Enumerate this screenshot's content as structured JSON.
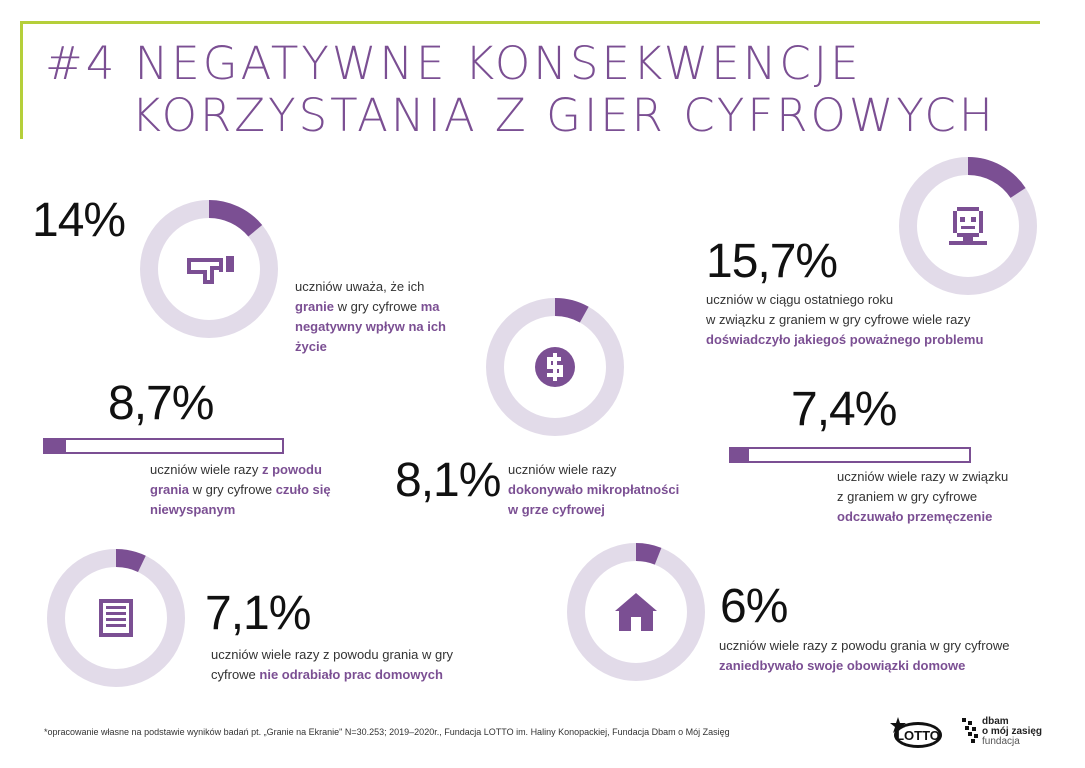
{
  "title": {
    "line1": "#4 NEGATYWNE KONSEKWENCJE",
    "line2": "     KORZYSTANIA Z GIER CYFROWYCH"
  },
  "stats": [
    {
      "id": "negative-impact",
      "value": "14%",
      "fraction": 0.14,
      "icon": "thumbs-down-icon",
      "text": [
        "uczniów uważa, że ich ",
        "granie",
        " w gry cyfrowe ",
        "ma negatywny wpływ",
        " ",
        "na ich życie"
      ]
    },
    {
      "id": "serious-problem",
      "value": "15,7%",
      "fraction": 0.157,
      "icon": "sad-face-icon",
      "text": [
        "uczniów w ciągu ostatniego roku ",
        "w związku z graniem w gry cyfrowe wiele razy ",
        "doświadczyło jakiegoś poważnego problemu"
      ]
    },
    {
      "id": "sleepy",
      "value": "8,7%",
      "fraction": 0.087,
      "text": [
        "uczniów wiele razy ",
        "z powodu",
        " ",
        "grania",
        " w gry cyfrowe ",
        "czuło się",
        " ",
        "niewyspanym"
      ]
    },
    {
      "id": "microtransactions",
      "value": "8,1%",
      "fraction": 0.081,
      "icon": "coin-icon",
      "text": [
        "uczniów wiele razy ",
        "dokonywało mikropłatności",
        " ",
        "w grze cyfrowej"
      ]
    },
    {
      "id": "tired",
      "value": "7,4%",
      "fraction": 0.074,
      "text": [
        "uczniów wiele razy w związku ",
        "z graniem w gry cyfrowe ",
        "odczuwało przemęczenie"
      ]
    },
    {
      "id": "homework",
      "value": "7,1%",
      "fraction": 0.071,
      "icon": "document-icon",
      "text": [
        "uczniów wiele razy z powodu grania w gry ",
        "cyfrowe ",
        "nie odrabiało prac domowych"
      ]
    },
    {
      "id": "chores",
      "value": "6%",
      "fraction": 0.06,
      "icon": "house-icon",
      "text": [
        "uczniów wiele razy z powodu grania w gry cyfrowe ",
        "zaniedbywało swoje obowiązki domowe"
      ]
    }
  ],
  "footnote": "*opracowanie własne na podstawie wyników badań pt. „Granie na Ekranie\" N=30.253; 2019–2020r., Fundacja LOTTO im. Haliny Konopackiej, Fundacja Dbam o Mój Zasięg",
  "logos": {
    "lotto": "LOTTO",
    "dbam_line1": "dbam",
    "dbam_line2": "o mój zasięg",
    "dbam_line3": "fundacja"
  },
  "colors": {
    "accent": "#7b4f93",
    "track": "#e2dbe9",
    "frame": "#b5cf3a"
  }
}
